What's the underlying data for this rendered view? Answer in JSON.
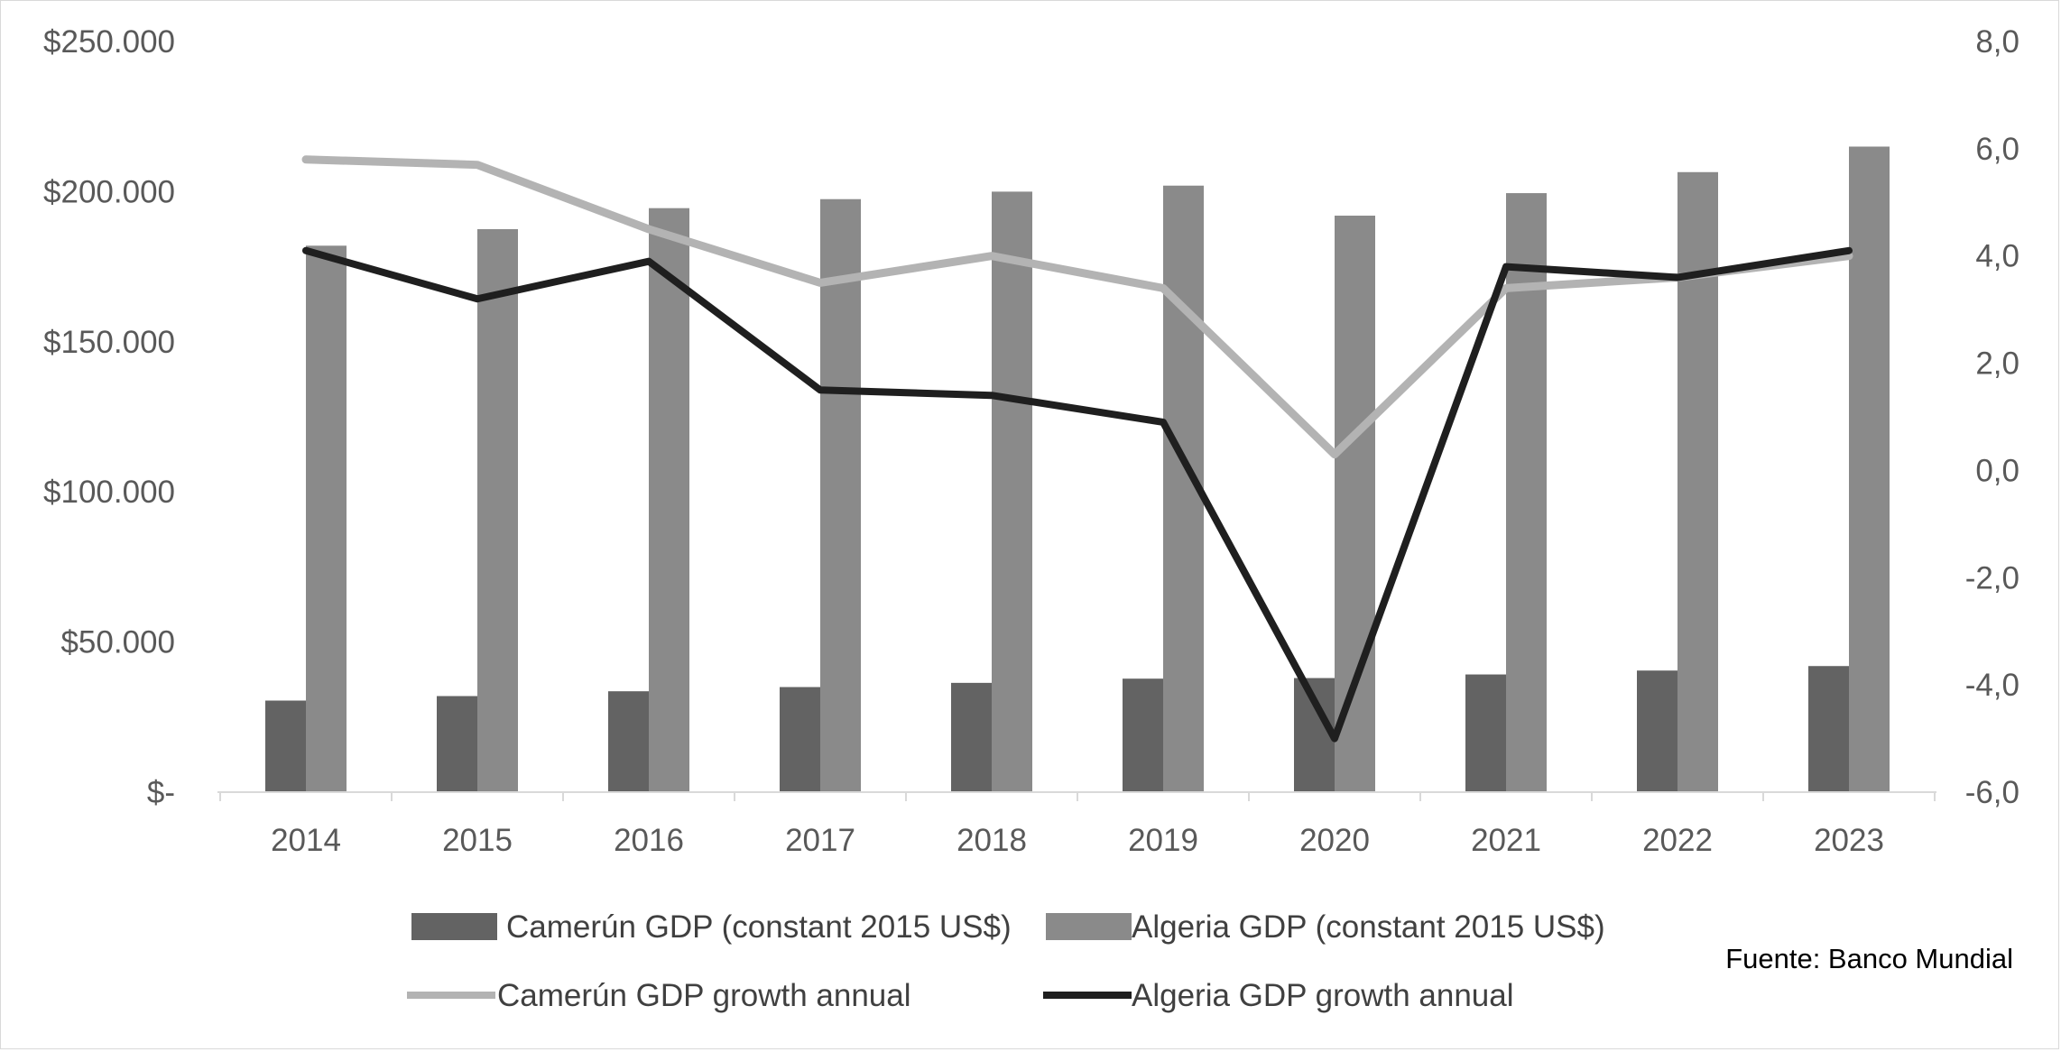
{
  "source_note": "Fuente: Banco Mundial",
  "chart_data": {
    "type": "bar",
    "categories": [
      "2014",
      "2015",
      "2016",
      "2017",
      "2018",
      "2019",
      "2020",
      "2021",
      "2022",
      "2023"
    ],
    "left_axis": {
      "ylim": [
        0,
        250000
      ],
      "ticks": [
        {
          "value": 0,
          "label": "$-"
        },
        {
          "value": 50000,
          "label": "$50.000"
        },
        {
          "value": 100000,
          "label": "$100.000"
        },
        {
          "value": 150000,
          "label": "$150.000"
        },
        {
          "value": 200000,
          "label": "$200.000"
        },
        {
          "value": 250000,
          "label": "$250.000"
        }
      ]
    },
    "right_axis": {
      "ylim": [
        -6,
        8
      ],
      "ticks": [
        {
          "value": -6,
          "label": "-6,0"
        },
        {
          "value": -4,
          "label": "-4,0"
        },
        {
          "value": -2,
          "label": "-2,0"
        },
        {
          "value": 0,
          "label": "0,0"
        },
        {
          "value": 2,
          "label": "2,0"
        },
        {
          "value": 4,
          "label": "4,0"
        },
        {
          "value": 6,
          "label": "6,0"
        },
        {
          "value": 8,
          "label": "8,0"
        }
      ]
    },
    "bar_series": [
      {
        "name": "Camerún GDP (constant 2015 US$)",
        "color": "#636363",
        "axis": "left",
        "values": [
          30500,
          32000,
          33600,
          35000,
          36400,
          37800,
          38000,
          39200,
          40500,
          42000
        ]
      },
      {
        "name": "Algeria GDP (constant 2015 US$)",
        "color": "#8a8a8a",
        "axis": "left",
        "values": [
          182000,
          187500,
          194500,
          197500,
          200000,
          202000,
          192000,
          199500,
          206500,
          215000
        ]
      }
    ],
    "line_series": [
      {
        "name": "Camerún GDP growth annual",
        "color": "#b3b3b3",
        "axis": "right",
        "values": [
          5.8,
          5.7,
          4.5,
          3.5,
          4.0,
          3.4,
          0.3,
          3.4,
          3.6,
          4.0
        ]
      },
      {
        "name": "Algeria GDP growth annual",
        "color": "#1f1f1f",
        "axis": "right",
        "values": [
          4.1,
          3.2,
          3.9,
          1.5,
          1.4,
          0.9,
          -5.0,
          3.8,
          3.6,
          4.1
        ]
      }
    ]
  }
}
